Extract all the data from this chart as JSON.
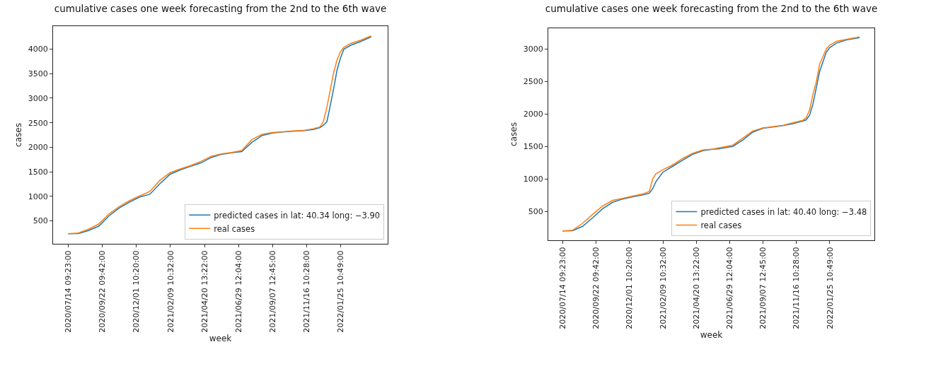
{
  "chart_data": [
    {
      "type": "line",
      "title": "cumulative cases one week forecasting from the 2nd to the 6th wave",
      "xlabel": "week",
      "ylabel": "cases",
      "legend": "bottom right",
      "grid": false,
      "x": [
        "2020-07-14",
        "2020-08-04",
        "2020-08-25",
        "2020-09-15",
        "2020-10-06",
        "2020-10-27",
        "2020-11-17",
        "2020-12-08",
        "2020-12-29",
        "2021-01-19",
        "2021-02-09",
        "2021-03-02",
        "2021-03-23",
        "2021-04-13",
        "2021-05-04",
        "2021-05-25",
        "2021-06-15",
        "2021-07-06",
        "2021-07-27",
        "2021-08-17",
        "2021-09-07",
        "2021-09-28",
        "2021-10-19",
        "2021-11-09",
        "2021-11-30",
        "2021-12-14",
        "2021-12-21",
        "2021-12-28",
        "2022-01-04",
        "2022-01-11",
        "2022-01-18",
        "2022-01-25",
        "2022-02-01",
        "2022-02-15",
        "2022-03-08",
        "2022-03-29"
      ],
      "series": [
        {
          "name": "predicted cases in lat: 40.34 long: −3.90",
          "color": "#1f77b4",
          "values": [
            235,
            240,
            300,
            390,
            600,
            760,
            880,
            985,
            1040,
            1260,
            1450,
            1540,
            1610,
            1680,
            1790,
            1855,
            1885,
            1910,
            2100,
            2240,
            2290,
            2310,
            2325,
            2335,
            2360,
            2400,
            2450,
            2520,
            2850,
            3200,
            3580,
            3820,
            4000,
            4080,
            4160,
            4250
          ]
        },
        {
          "name": "real cases",
          "color": "#ff7f0e",
          "values": [
            235,
            250,
            330,
            433,
            638,
            790,
            909,
            1006,
            1098,
            1329,
            1482,
            1559,
            1626,
            1712,
            1815,
            1866,
            1892,
            1933,
            2158,
            2265,
            2301,
            2316,
            2332,
            2342,
            2378,
            2414,
            2531,
            2813,
            3171,
            3529,
            3785,
            3949,
            4041,
            4118,
            4185,
            4271
          ]
        }
      ],
      "xlim": [
        "2020-06-13",
        "2022-05-02"
      ],
      "xticks": [
        {
          "value": "2020-07-14T09:23",
          "label": "2020/07/14 09:23:00"
        },
        {
          "value": "2020-09-22T09:42",
          "label": "2020/09/22 09:42:00"
        },
        {
          "value": "2020-12-01T10:20",
          "label": "2020/12/01 10:20:00"
        },
        {
          "value": "2021-02-09T10:32",
          "label": "2021/02/09 10:32:00"
        },
        {
          "value": "2021-04-20T13:22",
          "label": "2021/04/20 13:22:00"
        },
        {
          "value": "2021-06-29T12:04",
          "label": "2021/06/29 12:04:00"
        },
        {
          "value": "2021-09-07T12:45",
          "label": "2021/09/07 12:45:00"
        },
        {
          "value": "2021-11-16T10:28",
          "label": "2021/11/16 10:28:00"
        },
        {
          "value": "2022-01-25T10:49",
          "label": "2022/01/25 10:49:00"
        }
      ],
      "ylim": [
        30,
        4470
      ],
      "yticks": [
        500,
        1000,
        1500,
        2000,
        2500,
        3000,
        3500,
        4000
      ]
    },
    {
      "type": "line",
      "title": "cumulative cases one week forecasting from the 2nd to the 6th wave",
      "xlabel": "week",
      "ylabel": "cases",
      "legend": "bottom right",
      "grid": false,
      "x": [
        "2020-07-14",
        "2020-08-04",
        "2020-08-25",
        "2020-09-15",
        "2020-10-06",
        "2020-10-27",
        "2020-11-17",
        "2020-12-08",
        "2020-12-29",
        "2021-01-12",
        "2021-01-19",
        "2021-01-26",
        "2021-02-09",
        "2021-03-02",
        "2021-03-23",
        "2021-04-13",
        "2021-05-04",
        "2021-05-25",
        "2021-06-08",
        "2021-06-15",
        "2021-07-06",
        "2021-07-27",
        "2021-08-17",
        "2021-09-07",
        "2021-09-28",
        "2021-10-19",
        "2021-11-09",
        "2021-11-30",
        "2021-12-07",
        "2021-12-14",
        "2021-12-21",
        "2021-12-28",
        "2022-01-04",
        "2022-01-11",
        "2022-01-18",
        "2022-01-25",
        "2022-02-08",
        "2022-03-01",
        "2022-03-29"
      ],
      "series": [
        {
          "name": "predicted cases in lat: 40.40 long: −3.48",
          "color": "#1f77b4",
          "values": [
            199,
            203,
            270,
            400,
            540,
            640,
            690,
            725,
            755,
            780,
            850,
            960,
            1100,
            1195,
            1290,
            1380,
            1435,
            1455,
            1465,
            1475,
            1500,
            1600,
            1720,
            1780,
            1800,
            1820,
            1850,
            1890,
            1910,
            1980,
            2150,
            2400,
            2650,
            2800,
            2950,
            3020,
            3090,
            3140,
            3175
          ]
        },
        {
          "name": "real cases",
          "color": "#ff7f0e",
          "values": [
            199,
            210,
            316,
            453,
            583,
            669,
            700,
            735,
            767,
            806,
            1002,
            1080,
            1139,
            1217,
            1315,
            1394,
            1445,
            1460,
            1480,
            1490,
            1519,
            1629,
            1738,
            1786,
            1805,
            1825,
            1864,
            1903,
            1942,
            2060,
            2295,
            2491,
            2765,
            2882,
            3000,
            3059,
            3118,
            3149,
            3188
          ]
        }
      ],
      "xlim": [
        "2020-06-14",
        "2022-04-29"
      ],
      "xticks": [
        {
          "value": "2020-07-14T09:23",
          "label": "2020/07/14 09:23:00"
        },
        {
          "value": "2020-09-22T09:42",
          "label": "2020/09/22 09:42:00"
        },
        {
          "value": "2020-12-01T10:20",
          "label": "2020/12/01 10:20:00"
        },
        {
          "value": "2021-02-09T10:32",
          "label": "2021/02/09 10:32:00"
        },
        {
          "value": "2021-04-20T13:22",
          "label": "2021/04/20 13:22:00"
        },
        {
          "value": "2021-06-29T12:04",
          "label": "2021/06/29 12:04:00"
        },
        {
          "value": "2021-09-07T12:45",
          "label": "2021/09/07 12:45:00"
        },
        {
          "value": "2021-11-16T10:28",
          "label": "2021/11/16 10:28:00"
        },
        {
          "value": "2022-01-25T10:49",
          "label": "2022/01/25 10:49:00"
        }
      ],
      "ylim": [
        55,
        3320
      ],
      "yticks": [
        500,
        1000,
        1500,
        2000,
        2500,
        3000
      ]
    }
  ]
}
